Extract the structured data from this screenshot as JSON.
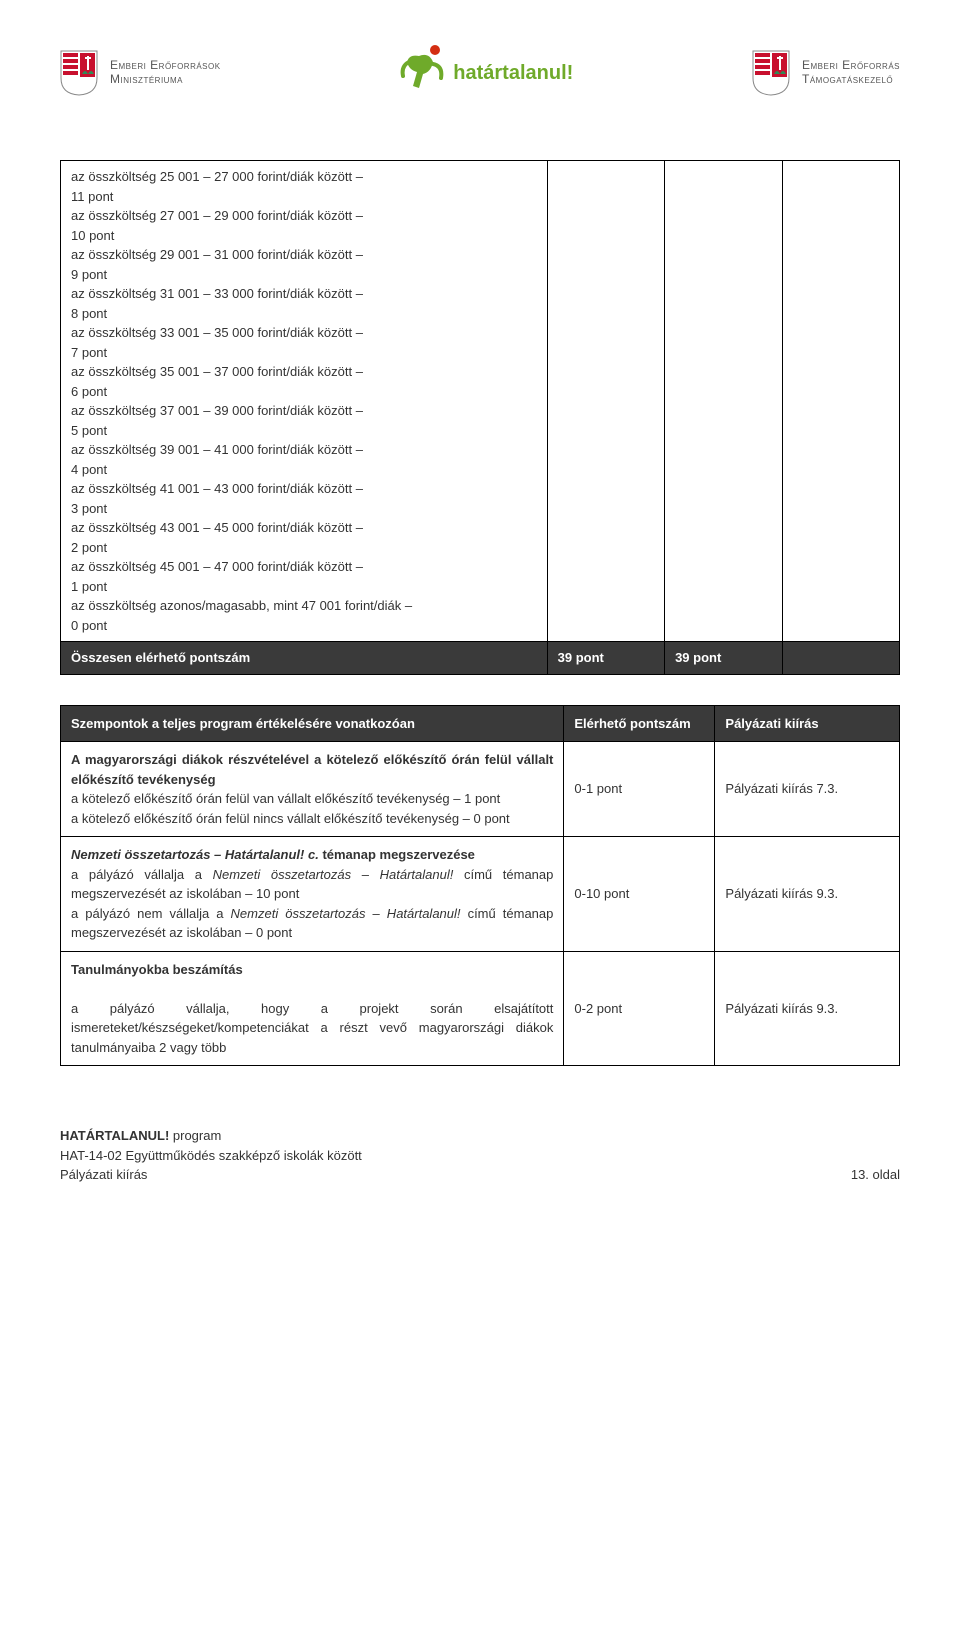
{
  "header": {
    "left_line1": "Emberi Erőforrások",
    "left_line2": "Minisztériuma",
    "center": "határtalanul!",
    "right_line1": "Emberi Erőforrás",
    "right_line2": "Támogatáskezelő"
  },
  "table1": {
    "cell_lines": [
      "az összköltség 25 001 – 27 000 forint/diák között – 11 pont",
      "az összköltség 27 001 – 29 000 forint/diák között – 10 pont",
      "az összköltség 29 001 – 31 000 forint/diák között – 9 pont",
      "az összköltség 31 001 – 33 000 forint/diák között – 8 pont",
      "az összköltség 33 001 – 35 000 forint/diák között – 7 pont",
      "az összköltség 35 001 – 37 000 forint/diák között – 6 pont",
      "az összköltség 37 001 – 39 000 forint/diák között – 5 pont",
      "az összköltség 39 001 – 41 000 forint/diák között – 4 pont",
      "az összköltség 41 001 – 43 000 forint/diák között – 3 pont",
      "az összköltség 43 001 – 45 000 forint/diák között – 2 pont",
      "az összköltség 45 001 – 47 000 forint/diák között – 1 pont",
      "az összköltség azonos/magasabb, mint 47 001 forint/diák – 0 pont"
    ],
    "total_label": "Összesen elérhető pontszám",
    "total_val1": "39 pont",
    "total_val2": "39 pont"
  },
  "table2": {
    "header": {
      "col1": "Szempontok a teljes program értékelésére vonatkozóan",
      "col2": "Elérhető pontszám",
      "col3": "Pályázati kiírás"
    },
    "rows": [
      {
        "col1_html": "<span class=\"bold\">A magyarországi diákok részvételével a kötelező előkészítő órán felül vállalt előkészítő tevékenység</span><br>a kötelező előkészítő órán felül van vállalt előkészítő tevékenység – 1 pont<br>a kötelező előkészítő órán felül nincs vállalt előkészítő tevékenység – 0 pont",
        "col2": "0-1 pont",
        "col3": "Pályázati kiírás 7.3."
      },
      {
        "col1_html": "<span class=\"bold italic\">Nemzeti összetartozás – Határtalanul! c.</span> <span class=\"bold\">témanap megszervezése</span><br>a pályázó vállalja a <span class=\"italic\">Nemzeti összetartozás – Határtalanul!</span> című témanap megszervezését az iskolában – 10 pont<br>a pályázó nem vállalja a <span class=\"italic\">Nemzeti összetartozás – Határtalanul!</span> című témanap megszervezését az iskolában – 0 pont",
        "col2": "0-10 pont",
        "col3": "Pályázati kiírás 9.3."
      },
      {
        "col1_html": "<span class=\"bold\">Tanulmányokba beszámítás</span><br><br>a pályázó vállalja, hogy a projekt során elsajátított ismereteket/készségeket/kompetenciákat a részt vevő magyarországi diákok tanulmányaiba 2 vagy több",
        "col2": "0-2 pont",
        "col3": "Pályázati kiírás 9.3."
      }
    ]
  },
  "footer": {
    "left_line1_bold": "HATÁRTALANUL!",
    "left_line1_rest": " program",
    "left_line2": "HAT-14-02 Együttműködés szakképző iskolák között",
    "left_line3": "Pályázati kiírás",
    "right": "13. oldal"
  },
  "colors": {
    "header_bg": "#3a3a3a",
    "header_fg": "#ffffff",
    "border": "#000000",
    "text": "#333333",
    "green": "#6faa2a"
  }
}
